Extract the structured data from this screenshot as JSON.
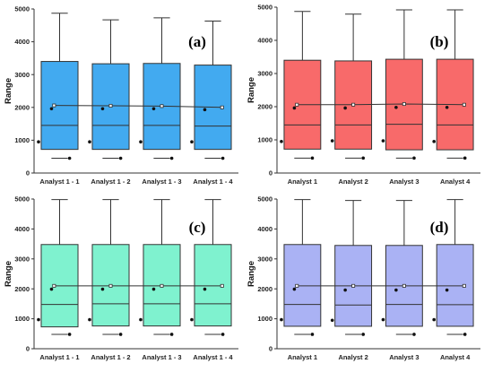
{
  "chart_data": [
    {
      "type": "box",
      "panel_label": "(a)",
      "ylabel": "Range",
      "ylim": [
        0,
        5000
      ],
      "yticks": [
        "0",
        "1000",
        "2000",
        "3000",
        "4000",
        "5000"
      ],
      "categories": [
        "Analyst 1 - 1",
        "Analyst 1 - 2",
        "Analyst 1 - 3",
        "Analyst 1 - 4"
      ],
      "box_color": "#42aaf0",
      "boxes": [
        {
          "whisker_low": 720,
          "q1": 720,
          "median": 1450,
          "q3": 3400,
          "whisker_high": 4870,
          "mean": 1960,
          "outlier_low": 950,
          "outlier_min": 450
        },
        {
          "whisker_low": 720,
          "q1": 720,
          "median": 1450,
          "q3": 3330,
          "whisker_high": 4670,
          "mean": 1960,
          "outlier_low": 950,
          "outlier_min": 450
        },
        {
          "whisker_low": 720,
          "q1": 720,
          "median": 1450,
          "q3": 3340,
          "whisker_high": 4730,
          "mean": 1960,
          "outlier_low": 950,
          "outlier_min": 450
        },
        {
          "whisker_low": 720,
          "q1": 720,
          "median": 1430,
          "q3": 3290,
          "whisker_high": 4630,
          "mean": 1930,
          "outlier_low": 950,
          "outlier_min": 450
        }
      ],
      "mean_line": [
        2060,
        2050,
        2040,
        2000
      ]
    },
    {
      "type": "box",
      "panel_label": "(b)",
      "ylabel": "Range",
      "ylim": [
        0,
        5000
      ],
      "yticks": [
        "0",
        "1000",
        "2000",
        "3000",
        "4000",
        "5000"
      ],
      "categories": [
        "Analyst 1",
        "Analyst 2",
        "Analyst 3",
        "Analyst 4"
      ],
      "box_color": "#f86a6a",
      "boxes": [
        {
          "whisker_low": 720,
          "q1": 720,
          "median": 1450,
          "q3": 3400,
          "whisker_high": 4870,
          "mean": 1960,
          "outlier_low": 950,
          "outlier_min": 450
        },
        {
          "whisker_low": 720,
          "q1": 720,
          "median": 1450,
          "q3": 3380,
          "whisker_high": 4790,
          "mean": 1960,
          "outlier_low": 970,
          "outlier_min": 450
        },
        {
          "whisker_low": 700,
          "q1": 700,
          "median": 1470,
          "q3": 3430,
          "whisker_high": 4920,
          "mean": 1980,
          "outlier_low": 970,
          "outlier_min": 450
        },
        {
          "whisker_low": 700,
          "q1": 700,
          "median": 1450,
          "q3": 3430,
          "whisker_high": 4920,
          "mean": 1980,
          "outlier_low": 950,
          "outlier_min": 450
        }
      ],
      "mean_line": [
        2060,
        2060,
        2080,
        2060
      ]
    },
    {
      "type": "box",
      "panel_label": "(c)",
      "ylabel": "Range",
      "ylim": [
        0,
        5000
      ],
      "yticks": [
        "0",
        "1000",
        "2000",
        "3000",
        "4000",
        "5000"
      ],
      "categories": [
        "Analyst 1 - 1",
        "Analyst 1 - 2",
        "Analyst 1 - 3",
        "Analyst 1 - 4"
      ],
      "box_color": "#7ff2cf",
      "boxes": [
        {
          "whisker_low": 730,
          "q1": 730,
          "median": 1480,
          "q3": 3480,
          "whisker_high": 4980,
          "mean": 1990,
          "outlier_low": 970,
          "outlier_min": 480
        },
        {
          "whisker_low": 760,
          "q1": 760,
          "median": 1500,
          "q3": 3480,
          "whisker_high": 4980,
          "mean": 1990,
          "outlier_low": 970,
          "outlier_min": 480
        },
        {
          "whisker_low": 760,
          "q1": 760,
          "median": 1500,
          "q3": 3480,
          "whisker_high": 4980,
          "mean": 1990,
          "outlier_low": 970,
          "outlier_min": 480
        },
        {
          "whisker_low": 760,
          "q1": 760,
          "median": 1500,
          "q3": 3480,
          "whisker_high": 4980,
          "mean": 1990,
          "outlier_low": 970,
          "outlier_min": 480
        }
      ],
      "mean_line": [
        2100,
        2100,
        2100,
        2100
      ]
    },
    {
      "type": "box",
      "panel_label": "(d)",
      "ylabel": "Range",
      "ylim": [
        0,
        5000
      ],
      "yticks": [
        "0",
        "1000",
        "2000",
        "3000",
        "4000",
        "5000"
      ],
      "categories": [
        "Analyst 1",
        "Analyst 2",
        "Analyst 3",
        "Analyst 4"
      ],
      "box_color": "#aab2f4",
      "boxes": [
        {
          "whisker_low": 750,
          "q1": 750,
          "median": 1480,
          "q3": 3480,
          "whisker_high": 4980,
          "mean": 1990,
          "outlier_low": 970,
          "outlier_min": 480
        },
        {
          "whisker_low": 750,
          "q1": 750,
          "median": 1460,
          "q3": 3450,
          "whisker_high": 4950,
          "mean": 1960,
          "outlier_low": 950,
          "outlier_min": 480
        },
        {
          "whisker_low": 750,
          "q1": 750,
          "median": 1480,
          "q3": 3450,
          "whisker_high": 4950,
          "mean": 1960,
          "outlier_low": 970,
          "outlier_min": 480
        },
        {
          "whisker_low": 750,
          "q1": 750,
          "median": 1470,
          "q3": 3480,
          "whisker_high": 4980,
          "mean": 1960,
          "outlier_low": 970,
          "outlier_min": 480
        }
      ],
      "mean_line": [
        2100,
        2100,
        2100,
        2100
      ]
    }
  ]
}
